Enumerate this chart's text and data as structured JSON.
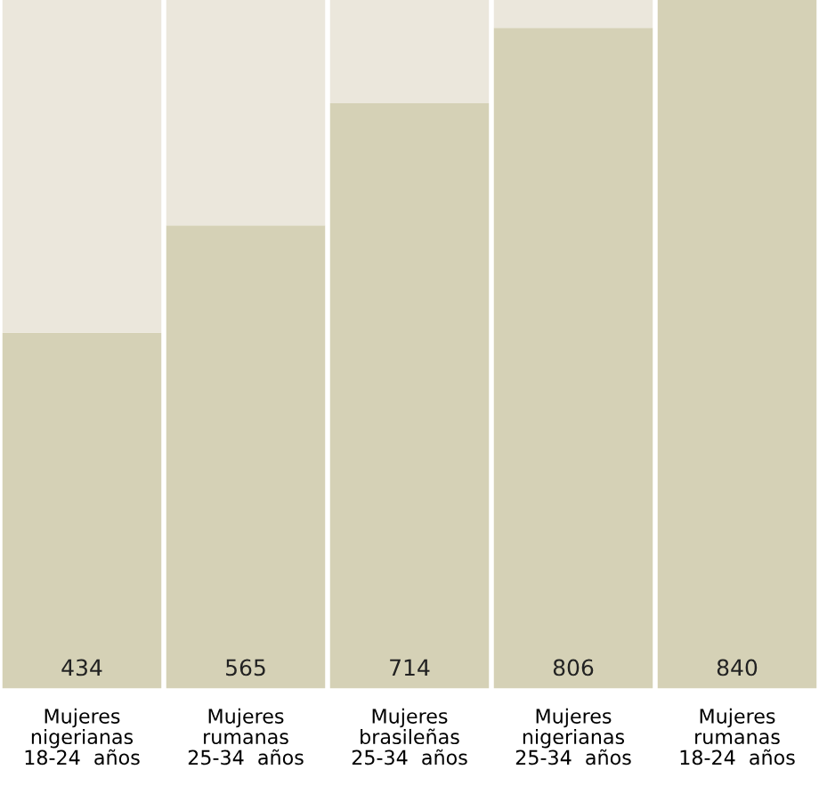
{
  "chart_data": {
    "type": "bar",
    "stacked": true,
    "categories": [
      "Mujeres\nnigerianas\n18-24  años",
      "Mujeres\nrumanas\n25-34  años",
      "Mujeres\nbrasileñas\n25-34  años",
      "Mujeres\nnigerianas\n25-34  años",
      "Mujeres\nrumanas\n18-24  años"
    ],
    "series": [
      {
        "color": "#d5d1b6",
        "values": [
          434,
          565,
          714,
          806,
          840
        ],
        "value_labels": [
          "434",
          "565",
          "714",
          "806",
          "840"
        ]
      },
      {
        "color": "#ebe7dc",
        "values": [
          406,
          275,
          126,
          34,
          0
        ]
      }
    ],
    "ylim": [
      0,
      840
    ],
    "grid": false,
    "tick_labels": "x"
  }
}
